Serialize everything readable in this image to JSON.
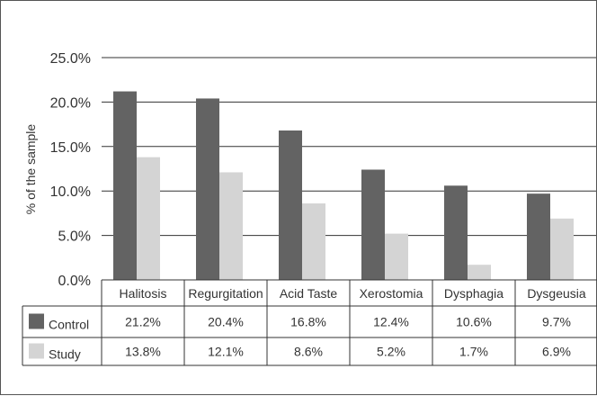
{
  "chart_data": {
    "type": "bar",
    "ylabel": "% of the sample",
    "ylim": [
      0,
      25
    ],
    "y_ticks": [
      "0.0%",
      "5.0%",
      "10.0%",
      "15.0%",
      "20.0%",
      "25.0%"
    ],
    "y_tick_values": [
      0,
      5,
      10,
      15,
      20,
      25
    ],
    "grid": true,
    "legend_placement": "data table, left column",
    "categories": [
      "Halitosis",
      "Regurgitation",
      "Acid Taste",
      "Xerostomia",
      "Dysphagia",
      "Dysgeusia"
    ],
    "series": [
      {
        "name": "Control",
        "color": "#636363",
        "values": [
          21.2,
          20.4,
          16.8,
          12.4,
          10.6,
          9.7
        ],
        "labels": [
          "21.2%",
          "20.4%",
          "16.8%",
          "12.4%",
          "10.6%",
          "9.7%"
        ]
      },
      {
        "name": "Study",
        "color": "#d4d4d4",
        "values": [
          13.8,
          12.1,
          8.6,
          5.2,
          1.7,
          6.9
        ],
        "labels": [
          "13.8%",
          "12.1%",
          "8.6%",
          "5.2%",
          "1.7%",
          "6.9%"
        ]
      }
    ]
  }
}
